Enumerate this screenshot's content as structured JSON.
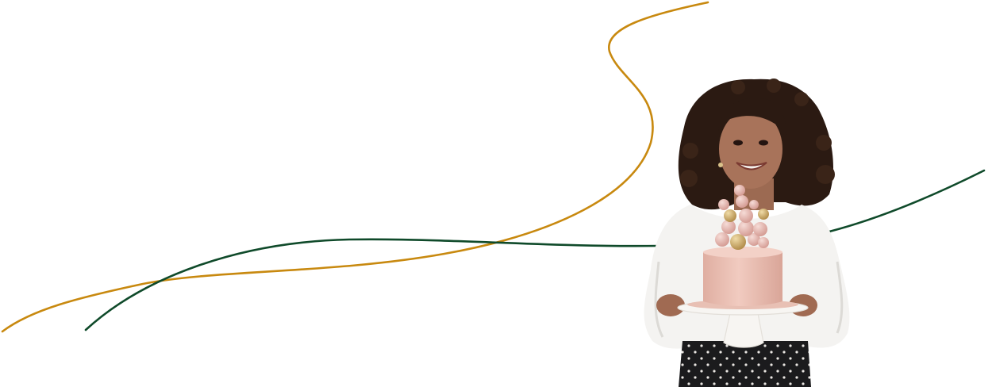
{
  "scene": {
    "subject": "woman-holding-cake",
    "colors": {
      "background": "#ffffff",
      "gold_line": "#c8890f",
      "green_line": "#0f4a2a",
      "hair": "#2b1a12",
      "skin": "#a8735a",
      "sweater": "#f4f3f1",
      "skirt": "#1b1b1d",
      "cake": "#ebc1b5",
      "ball_pink": "#e4b3ab",
      "ball_gold": "#cfae72",
      "stand": "#f7f5f2"
    }
  }
}
